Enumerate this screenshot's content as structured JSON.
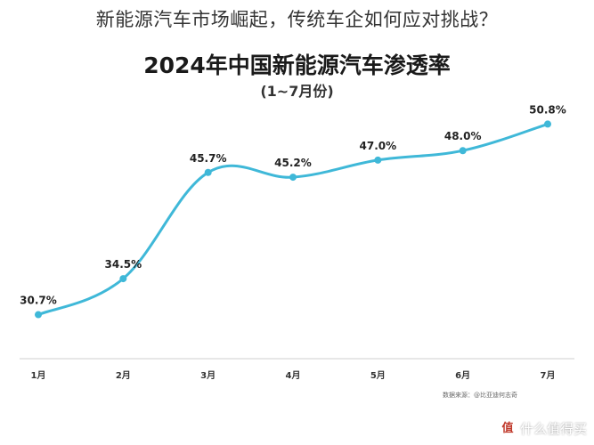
{
  "page": {
    "heading": "新能源汽车市场崛起，传统车企如何应对挑战？"
  },
  "chart_data": {
    "type": "line",
    "title": "2024年中国新能源汽车渗透率",
    "subtitle": "(1~7月份)",
    "categories": [
      "1月",
      "2月",
      "3月",
      "4月",
      "5月",
      "6月",
      "7月"
    ],
    "values": [
      30.7,
      34.5,
      45.7,
      45.2,
      47.0,
      48.0,
      50.8
    ],
    "data_labels": [
      "30.7%",
      "34.5%",
      "45.7%",
      "45.2%",
      "47.0%",
      "48.0%",
      "50.8%"
    ],
    "unit": "%",
    "ylim": [
      19.3,
      54.5
    ],
    "grid": false,
    "line_color": "#3fb8d8",
    "source": "数据来源：@比亚迪何志奇"
  },
  "watermark": {
    "logo": "值",
    "text": "什么值得买"
  }
}
